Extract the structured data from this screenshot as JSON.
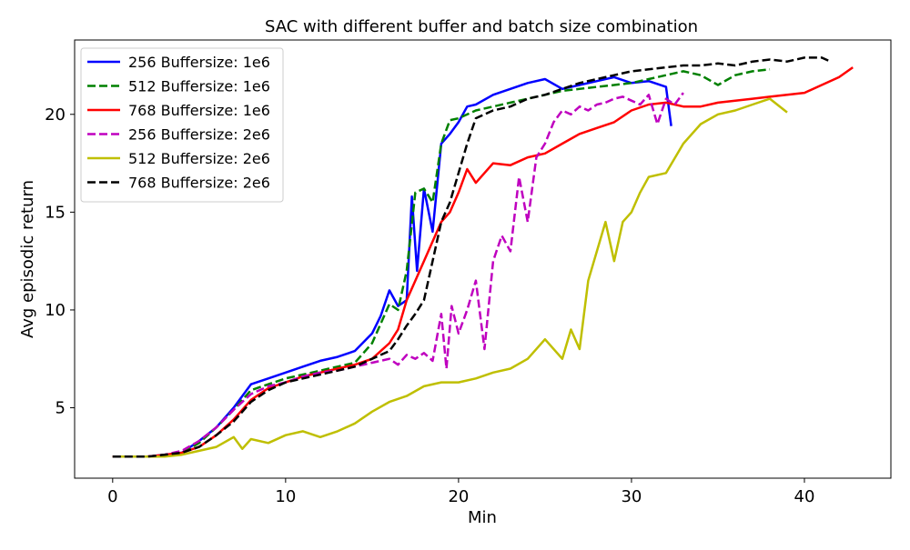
{
  "chart_data": {
    "type": "line",
    "title": "SAC with different buffer and batch size combination",
    "xlabel": "Min",
    "ylabel": "Avg episodic return",
    "xlim": [
      -2.2,
      45.0
    ],
    "ylim": [
      1.4,
      23.8
    ],
    "xticks": [
      0,
      10,
      20,
      30,
      40
    ],
    "xtick_labels": [
      "0",
      "10",
      "20",
      "30",
      "40"
    ],
    "yticks": [
      5,
      10,
      15,
      20
    ],
    "ytick_labels": [
      "5",
      "10",
      "15",
      "20"
    ],
    "grid": false,
    "legend_position": "upper-left",
    "series": [
      {
        "name": "256 Buffersize: 1e6",
        "color": "#0000ff",
        "dash": "solid",
        "x": [
          0,
          1,
          2,
          3,
          4,
          5,
          6,
          7,
          8,
          9,
          10,
          11,
          12,
          13,
          14,
          15,
          15.5,
          16,
          16.5,
          17,
          17.3,
          17.6,
          18,
          18.5,
          19,
          19.5,
          20,
          20.5,
          21,
          22,
          23,
          24,
          25,
          26,
          27,
          28,
          29,
          30,
          31,
          32,
          32.3
        ],
        "y": [
          2.5,
          2.5,
          2.5,
          2.6,
          2.7,
          3.3,
          4.0,
          5.0,
          6.2,
          6.5,
          6.8,
          7.1,
          7.4,
          7.6,
          7.9,
          8.8,
          9.7,
          11.0,
          10.2,
          10.5,
          15.8,
          12.0,
          16.2,
          14.0,
          18.5,
          19.0,
          19.6,
          20.4,
          20.5,
          21.0,
          21.3,
          21.6,
          21.8,
          21.3,
          21.5,
          21.7,
          21.9,
          21.6,
          21.7,
          21.4,
          19.4
        ]
      },
      {
        "name": "512 Buffersize: 1e6",
        "color": "#008000",
        "dash": "dashed",
        "x": [
          0,
          1,
          2,
          3,
          4,
          5,
          6,
          7,
          8,
          9,
          10,
          11,
          12,
          13,
          14,
          15,
          16,
          16.5,
          17,
          17.5,
          18,
          18.5,
          19,
          19.5,
          20,
          21,
          22,
          23,
          24,
          25,
          26,
          27,
          28,
          29,
          30,
          31,
          32,
          33,
          34,
          35,
          36,
          37,
          38
        ],
        "y": [
          2.5,
          2.5,
          2.5,
          2.6,
          2.7,
          3.2,
          4.0,
          4.9,
          5.9,
          6.2,
          6.5,
          6.7,
          6.9,
          7.1,
          7.3,
          8.3,
          10.3,
          10.0,
          12.0,
          16.0,
          16.2,
          15.5,
          18.5,
          19.7,
          19.8,
          20.2,
          20.4,
          20.6,
          20.8,
          21.0,
          21.2,
          21.3,
          21.4,
          21.5,
          21.6,
          21.8,
          22.0,
          22.2,
          22.0,
          21.5,
          22.0,
          22.2,
          22.3
        ]
      },
      {
        "name": "768 Buffersize: 1e6",
        "color": "#ff0000",
        "dash": "solid",
        "x": [
          0,
          1,
          2,
          3,
          4,
          5,
          6,
          7,
          8,
          9,
          10,
          11,
          12,
          13,
          14,
          15,
          16,
          16.5,
          17,
          17.5,
          18,
          18.5,
          19,
          19.5,
          20,
          20.5,
          21,
          21.5,
          22,
          23,
          24,
          25,
          26,
          27,
          28,
          29,
          30,
          31,
          32,
          33,
          34,
          35,
          36,
          37,
          38,
          39,
          40,
          41,
          42,
          42.8
        ],
        "y": [
          2.5,
          2.5,
          2.5,
          2.6,
          2.7,
          3.0,
          3.6,
          4.4,
          5.4,
          6.0,
          6.3,
          6.6,
          6.8,
          7.0,
          7.2,
          7.5,
          8.3,
          9.0,
          10.5,
          11.5,
          12.5,
          13.5,
          14.5,
          15.0,
          16.0,
          17.2,
          16.5,
          17.0,
          17.5,
          17.4,
          17.8,
          18.0,
          18.5,
          19.0,
          19.3,
          19.6,
          20.2,
          20.5,
          20.6,
          20.4,
          20.4,
          20.6,
          20.7,
          20.8,
          20.9,
          21.0,
          21.1,
          21.5,
          21.9,
          22.4
        ]
      },
      {
        "name": "256 Buffersize: 2e6",
        "color": "#bf00bf",
        "dash": "dashed",
        "x": [
          0,
          1,
          2,
          3,
          4,
          5,
          6,
          7,
          8,
          9,
          10,
          11,
          12,
          13,
          14,
          15,
          16,
          16.5,
          17,
          17.5,
          18,
          18.5,
          19,
          19.3,
          19.6,
          20,
          20.5,
          21,
          21.5,
          22,
          22.5,
          23,
          23.5,
          24,
          24.5,
          25,
          25.5,
          26,
          26.5,
          27,
          27.5,
          28,
          28.5,
          29,
          29.5,
          30,
          30.5,
          31,
          31.5,
          32,
          32.5,
          33
        ],
        "y": [
          2.5,
          2.5,
          2.5,
          2.6,
          2.8,
          3.3,
          4.0,
          4.9,
          5.7,
          6.1,
          6.3,
          6.6,
          6.8,
          6.9,
          7.1,
          7.3,
          7.5,
          7.2,
          7.7,
          7.5,
          7.8,
          7.4,
          9.8,
          7.0,
          10.2,
          8.8,
          10.0,
          11.5,
          8.0,
          12.5,
          13.8,
          13.0,
          16.8,
          14.5,
          17.8,
          18.5,
          19.6,
          20.2,
          20.0,
          20.4,
          20.2,
          20.5,
          20.6,
          20.8,
          20.9,
          20.7,
          20.5,
          21.0,
          19.5,
          20.8,
          20.5,
          21.1
        ]
      },
      {
        "name": "512 Buffersize: 2e6",
        "color": "#bfbf00",
        "dash": "solid",
        "x": [
          0,
          1,
          2,
          3,
          4,
          5,
          6,
          7,
          7.5,
          8,
          9,
          10,
          11,
          12,
          13,
          14,
          15,
          16,
          17,
          18,
          19,
          20,
          21,
          22,
          23,
          24,
          25,
          26,
          26.5,
          27,
          27.5,
          28,
          28.5,
          29,
          29.5,
          30,
          30.5,
          31,
          32,
          33,
          34,
          35,
          36,
          37,
          38,
          39
        ],
        "y": [
          2.5,
          2.5,
          2.5,
          2.5,
          2.6,
          2.8,
          3.0,
          3.5,
          2.9,
          3.4,
          3.2,
          3.6,
          3.8,
          3.5,
          3.8,
          4.2,
          4.8,
          5.3,
          5.6,
          6.1,
          6.3,
          6.3,
          6.5,
          6.8,
          7.0,
          7.5,
          8.5,
          7.5,
          9.0,
          8.0,
          11.5,
          13.0,
          14.5,
          12.5,
          14.5,
          15.0,
          16.0,
          16.8,
          17.0,
          18.5,
          19.5,
          20.0,
          20.2,
          20.5,
          20.8,
          20.1
        ]
      },
      {
        "name": "768 Buffersize: 2e6",
        "color": "#000000",
        "dash": "dashed",
        "x": [
          0,
          1,
          2,
          3,
          4,
          5,
          6,
          7,
          8,
          9,
          10,
          11,
          12,
          13,
          14,
          15,
          16,
          16.5,
          17,
          17.5,
          18,
          18.5,
          19,
          19.5,
          20,
          20.5,
          21,
          22,
          23,
          24,
          25,
          26,
          27,
          28,
          29,
          30,
          31,
          32,
          33,
          34,
          35,
          36,
          37,
          38,
          39,
          40,
          41,
          41.5
        ],
        "y": [
          2.5,
          2.5,
          2.5,
          2.6,
          2.7,
          3.0,
          3.6,
          4.3,
          5.3,
          5.9,
          6.3,
          6.5,
          6.7,
          6.9,
          7.1,
          7.5,
          7.9,
          8.5,
          9.2,
          9.8,
          10.5,
          12.5,
          14.5,
          15.5,
          17.0,
          18.5,
          19.8,
          20.2,
          20.4,
          20.8,
          21.0,
          21.3,
          21.6,
          21.8,
          22.0,
          22.2,
          22.3,
          22.4,
          22.5,
          22.5,
          22.6,
          22.5,
          22.7,
          22.8,
          22.7,
          22.9,
          22.9,
          22.7
        ]
      }
    ]
  }
}
